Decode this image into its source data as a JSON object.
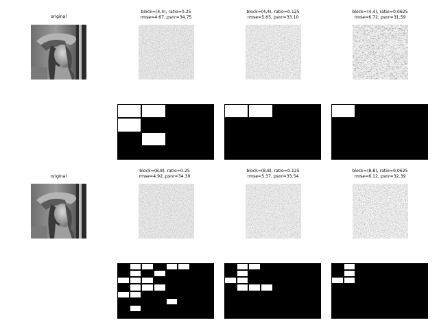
{
  "panels": {
    "r1_original": "original",
    "r1_c1": "block=(4,4), ratio=0.25\nrmse=4.67, psnr=34.75",
    "r1_c2": "block=(4,4), ratio=0.125\nrmse=5.65, psnr=33.10",
    "r1_c3": "block=(4,4), ratio=0.0625\nrmse=6.72, psnr=31.59",
    "r2_original": "original",
    "r2_c1": "block=(8,8), ratio=0.25\nrmse=4.92, psnr=34.30",
    "r2_c2": "block=(8,8), ratio=0.125\nrmse=5.37, psnr=33.54",
    "r2_c3": "block=(8,8), ratio=0.0625\nrmse=6.12, psnr=32.39"
  },
  "colors": {
    "background": "#ffffff",
    "mask_off": "#000000",
    "mask_on": "#ffffff"
  },
  "masks": {
    "block_4x4": {
      "grid": [
        4,
        4
      ],
      "ratio_0_25": [
        [
          0,
          0
        ],
        [
          0,
          1
        ],
        [
          1,
          0
        ],
        [
          2,
          1
        ]
      ],
      "ratio_0_125": [
        [
          0,
          0
        ],
        [
          0,
          1
        ]
      ],
      "ratio_0_0625": [
        [
          0,
          0
        ]
      ]
    },
    "block_8x8": {
      "grid": [
        8,
        8
      ],
      "ratio_0_25": [
        [
          0,
          1
        ],
        [
          0,
          2
        ],
        [
          0,
          4
        ],
        [
          0,
          5
        ],
        [
          1,
          1
        ],
        [
          1,
          3
        ],
        [
          2,
          0
        ],
        [
          2,
          1
        ],
        [
          2,
          2
        ],
        [
          3,
          1
        ],
        [
          3,
          2
        ],
        [
          3,
          3
        ],
        [
          4,
          0
        ],
        [
          4,
          1
        ],
        [
          5,
          4
        ],
        [
          6,
          1
        ]
      ],
      "ratio_0_125": [
        [
          0,
          1
        ],
        [
          0,
          2
        ],
        [
          1,
          1
        ],
        [
          2,
          0
        ],
        [
          2,
          1
        ],
        [
          3,
          1
        ],
        [
          3,
          2
        ],
        [
          3,
          3
        ]
      ],
      "ratio_0_0625": [
        [
          0,
          1
        ],
        [
          1,
          1
        ],
        [
          2,
          0
        ],
        [
          2,
          1
        ]
      ]
    }
  }
}
